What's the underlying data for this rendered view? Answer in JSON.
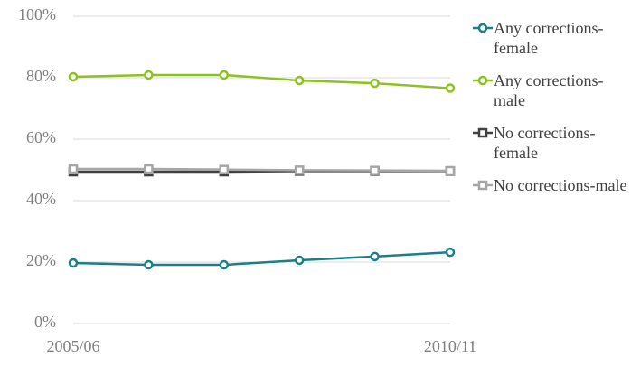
{
  "chart_data": {
    "type": "line",
    "categories": [
      "2005/06",
      null,
      null,
      null,
      null,
      "2010/11"
    ],
    "series": [
      {
        "name": "Any corrections-female",
        "color": "#1b7f86",
        "marker": "circle",
        "values": [
          19.7,
          19.1,
          19.1,
          20.6,
          21.8,
          23.2
        ]
      },
      {
        "name": "Any corrections-male",
        "color": "#8cc21f",
        "marker": "circle",
        "values": [
          80.3,
          80.9,
          80.9,
          79.1,
          78.2,
          76.6
        ]
      },
      {
        "name": "No corrections-female",
        "color": "#404040",
        "marker": "square",
        "values": [
          49.4,
          49.4,
          49.4,
          49.6,
          49.6,
          49.6
        ]
      },
      {
        "name": "No corrections-male",
        "color": "#a6a6a6",
        "marker": "square",
        "values": [
          50.3,
          50.3,
          50.1,
          49.9,
          49.8,
          49.7
        ]
      }
    ],
    "ylim": [
      0,
      100
    ],
    "yticks": [
      {
        "value": 0,
        "label": "0%"
      },
      {
        "value": 20,
        "label": "20%"
      },
      {
        "value": 40,
        "label": "40%"
      },
      {
        "value": 60,
        "label": "60%"
      },
      {
        "value": 80,
        "label": "80%"
      },
      {
        "value": 100,
        "label": "100%"
      }
    ],
    "grid": true,
    "legend": "right"
  }
}
